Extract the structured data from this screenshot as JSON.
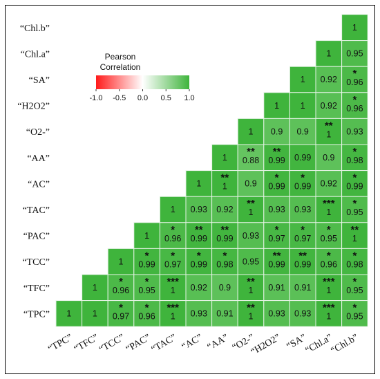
{
  "chart_data": {
    "type": "heatmap",
    "row_labels": [
      "“Chl.b”",
      "“Chl.a”",
      "“SA”",
      "“H2O2”",
      "“O2-”",
      "“AA”",
      "“AC”",
      "“TAC”",
      "“PAC”",
      "“TCC”",
      "“TFC”",
      "“TPC”"
    ],
    "col_labels": [
      "“TPC”",
      "“TFC”",
      "“TCC”",
      "“PAC”",
      "“TAC”",
      "“AC”",
      "“AA”",
      "“O2-”",
      "“H2O2”",
      "“SA”",
      "“Chl.a”",
      "“Chl.b”"
    ],
    "cells": [
      [
        null,
        null,
        null,
        null,
        null,
        null,
        null,
        null,
        null,
        null,
        null,
        "1"
      ],
      [
        null,
        null,
        null,
        null,
        null,
        null,
        null,
        null,
        null,
        null,
        "1",
        "0.95"
      ],
      [
        null,
        null,
        null,
        null,
        null,
        null,
        null,
        null,
        null,
        "1",
        "0.92",
        "0.96"
      ],
      [
        null,
        null,
        null,
        null,
        null,
        null,
        null,
        null,
        "1",
        "1",
        "0.92",
        "0.96"
      ],
      [
        null,
        null,
        null,
        null,
        null,
        null,
        null,
        "1",
        "0.9",
        "0.9",
        "1",
        "0.93"
      ],
      [
        null,
        null,
        null,
        null,
        null,
        null,
        "1",
        "0.88",
        "0.99",
        "0.99",
        "0.9",
        "0.98"
      ],
      [
        null,
        null,
        null,
        null,
        null,
        "1",
        "1",
        "0.9",
        "0.99",
        "0.99",
        "0.92",
        "0.99"
      ],
      [
        null,
        null,
        null,
        null,
        "1",
        "0.93",
        "0.92",
        "1",
        "0.93",
        "0.93",
        "1",
        "0.95"
      ],
      [
        null,
        null,
        null,
        "1",
        "0.96",
        "0.99",
        "0.99",
        "0.93",
        "0.97",
        "0.97",
        "0.95",
        "1"
      ],
      [
        null,
        null,
        "1",
        "0.99",
        "0.97",
        "0.99",
        "0.98",
        "0.95",
        "0.99",
        "0.99",
        "0.96",
        "0.98"
      ],
      [
        null,
        "1",
        "0.96",
        "0.95",
        "1",
        "0.92",
        "0.9",
        "1",
        "0.91",
        "0.91",
        "1",
        "0.95"
      ],
      [
        "1",
        "1",
        "0.97",
        "0.96",
        "1",
        "0.93",
        "0.91",
        "1",
        "0.93",
        "0.93",
        "1",
        "0.95"
      ]
    ],
    "stars": [
      [
        "",
        "",
        "",
        "",
        "",
        "",
        "",
        "",
        "",
        "",
        "",
        ""
      ],
      [
        "",
        "",
        "",
        "",
        "",
        "",
        "",
        "",
        "",
        "",
        "",
        ""
      ],
      [
        "",
        "",
        "",
        "",
        "",
        "",
        "",
        "",
        "",
        "",
        "",
        "*"
      ],
      [
        "",
        "",
        "",
        "",
        "",
        "",
        "",
        "",
        "",
        "",
        "",
        "*"
      ],
      [
        "",
        "",
        "",
        "",
        "",
        "",
        "",
        "",
        "",
        "",
        "**",
        ""
      ],
      [
        "",
        "",
        "",
        "",
        "",
        "",
        "",
        "**",
        "**",
        "",
        "",
        "*"
      ],
      [
        "",
        "",
        "",
        "",
        "",
        "",
        "**",
        "",
        "*",
        "*",
        "",
        "*"
      ],
      [
        "",
        "",
        "",
        "",
        "",
        "",
        "",
        "**",
        "",
        "",
        "***",
        "*"
      ],
      [
        "",
        "",
        "",
        "",
        "*",
        "**",
        "**",
        "",
        "*",
        "*",
        "*",
        "**"
      ],
      [
        "",
        "",
        "",
        "*",
        "*",
        "*",
        "*",
        "",
        "**",
        "**",
        "*",
        "*"
      ],
      [
        "",
        "",
        "*",
        "*",
        "***",
        "",
        "",
        "**",
        "",
        "",
        "***",
        "*"
      ],
      [
        "",
        "",
        "*",
        "*",
        "***",
        "",
        "",
        "**",
        "",
        "",
        "***",
        "*"
      ]
    ],
    "legend": {
      "title_line1": "Pearson",
      "title_line2": "Correlation",
      "ticks": [
        "-1.0",
        "-0.5",
        "0.0",
        "0.5",
        "1.0"
      ],
      "range": [
        -1.0,
        1.0
      ]
    },
    "colors": {
      "high": "#3fb43c",
      "mid": "#ffffff",
      "low": "#ff1a1a",
      "grid": "#e6f3e6"
    }
  }
}
